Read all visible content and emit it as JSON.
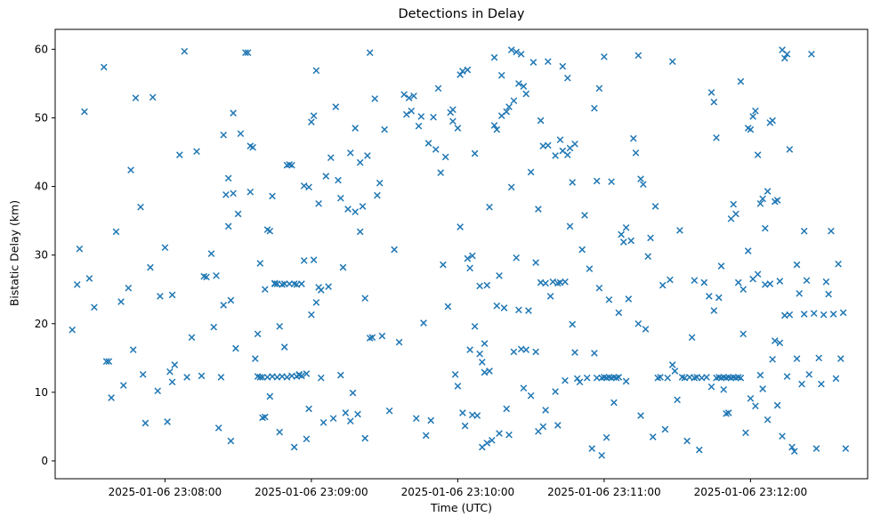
{
  "figure": {
    "title": "Detections in Delay",
    "xlabel": "Time (UTC)",
    "ylabel": "Bistatic Delay (km)"
  },
  "chart_data": {
    "type": "scatter",
    "title": "Detections in Delay",
    "xlabel": "Time (UTC)",
    "ylabel": "Bistatic Delay (km)",
    "marker": "x",
    "marker_color": "#1f77b4",
    "grid": false,
    "legend": "none",
    "x_unit": "seconds after 2025-01-06 23:08:00 UTC",
    "xlim": [
      -45,
      288
    ],
    "ylim": [
      -2.6,
      62.9
    ],
    "y_ticks": [
      0,
      10,
      20,
      30,
      40,
      50,
      60
    ],
    "x_ticks": [
      {
        "t": 0,
        "label": "2025-01-06 23:08:00"
      },
      {
        "t": 60,
        "label": "2025-01-06 23:09:00"
      },
      {
        "t": 120,
        "label": "2025-01-06 23:10:00"
      },
      {
        "t": 180,
        "label": "2025-01-06 23:11:00"
      },
      {
        "t": 240,
        "label": "2025-01-06 23:12:00"
      }
    ],
    "points": [
      [
        -38,
        19.1
      ],
      [
        -36,
        25.7
      ],
      [
        -35,
        30.9
      ],
      [
        -33,
        50.9
      ],
      [
        -31,
        26.6
      ],
      [
        -29,
        22.4
      ],
      [
        -25,
        57.4
      ],
      [
        -24,
        14.5
      ],
      [
        -23,
        14.5
      ],
      [
        -22,
        9.2
      ],
      [
        -20,
        33.4
      ],
      [
        -18,
        23.2
      ],
      [
        -17,
        11.0
      ],
      [
        -15,
        25.2
      ],
      [
        -14,
        42.4
      ],
      [
        -13,
        16.2
      ],
      [
        -12,
        52.9
      ],
      [
        -10,
        37.0
      ],
      [
        -9,
        12.6
      ],
      [
        -8,
        5.5
      ],
      [
        -6,
        28.2
      ],
      [
        -5,
        53.0
      ],
      [
        -3,
        10.2
      ],
      [
        -2,
        24.0
      ],
      [
        0,
        31.1
      ],
      [
        1,
        5.7
      ],
      [
        2,
        13.0
      ],
      [
        3,
        24.2
      ],
      [
        3,
        11.5
      ],
      [
        4,
        14.0
      ],
      [
        6,
        44.6
      ],
      [
        8,
        59.7
      ],
      [
        9,
        12.2
      ],
      [
        11,
        18.0
      ],
      [
        13,
        45.1
      ],
      [
        15,
        12.4
      ],
      [
        16,
        26.9
      ],
      [
        17,
        26.8
      ],
      [
        19,
        30.2
      ],
      [
        20,
        19.5
      ],
      [
        21,
        27.0
      ],
      [
        22,
        4.8
      ],
      [
        23,
        12.2
      ],
      [
        24,
        22.7
      ],
      [
        24,
        47.5
      ],
      [
        25,
        38.8
      ],
      [
        26,
        41.2
      ],
      [
        26,
        34.2
      ],
      [
        27,
        2.9
      ],
      [
        27,
        23.4
      ],
      [
        28,
        39.0
      ],
      [
        28,
        50.7
      ],
      [
        29,
        16.4
      ],
      [
        30,
        36.0
      ],
      [
        31,
        47.7
      ],
      [
        33,
        59.5
      ],
      [
        34,
        59.5
      ],
      [
        35,
        39.2
      ],
      [
        35,
        45.9
      ],
      [
        36,
        45.7
      ],
      [
        37,
        14.9
      ],
      [
        38,
        12.3
      ],
      [
        38,
        18.5
      ],
      [
        39,
        28.8
      ],
      [
        39,
        12.2
      ],
      [
        40,
        12.2
      ],
      [
        40,
        6.3
      ],
      [
        41,
        6.4
      ],
      [
        41,
        25.0
      ],
      [
        42,
        12.2
      ],
      [
        42,
        33.7
      ],
      [
        43,
        33.5
      ],
      [
        43,
        9.4
      ],
      [
        44,
        38.6
      ],
      [
        44,
        12.3
      ],
      [
        45,
        25.9
      ],
      [
        45,
        25.8
      ],
      [
        46,
        12.2
      ],
      [
        46,
        25.8
      ],
      [
        47,
        4.2
      ],
      [
        47,
        19.6
      ],
      [
        48,
        25.7
      ],
      [
        48,
        12.3
      ],
      [
        49,
        16.6
      ],
      [
        49,
        25.8
      ],
      [
        50,
        12.2
      ],
      [
        50,
        43.1
      ],
      [
        51,
        43.2
      ],
      [
        51,
        25.8
      ],
      [
        52,
        12.4
      ],
      [
        52,
        43.1
      ],
      [
        53,
        2.0
      ],
      [
        53,
        25.8
      ],
      [
        54,
        12.3
      ],
      [
        54,
        25.7
      ],
      [
        55,
        12.5
      ],
      [
        55,
        12.6
      ],
      [
        56,
        25.8
      ],
      [
        56,
        12.4
      ],
      [
        57,
        40.1
      ],
      [
        57,
        29.2
      ],
      [
        58,
        3.2
      ],
      [
        58,
        12.7
      ],
      [
        59,
        39.9
      ],
      [
        59,
        7.6
      ],
      [
        60,
        49.4
      ],
      [
        60,
        21.3
      ],
      [
        61,
        50.3
      ],
      [
        61,
        29.3
      ],
      [
        62,
        23.1
      ],
      [
        62,
        56.9
      ],
      [
        63,
        25.3
      ],
      [
        63,
        37.5
      ],
      [
        64,
        12.1
      ],
      [
        64,
        24.9
      ],
      [
        65,
        5.6
      ],
      [
        66,
        41.5
      ],
      [
        67,
        25.4
      ],
      [
        68,
        44.2
      ],
      [
        69,
        6.2
      ],
      [
        70,
        51.6
      ],
      [
        71,
        40.9
      ],
      [
        72,
        38.3
      ],
      [
        72,
        12.5
      ],
      [
        73,
        28.2
      ],
      [
        74,
        7.0
      ],
      [
        75,
        36.7
      ],
      [
        76,
        44.9
      ],
      [
        76,
        5.8
      ],
      [
        77,
        9.9
      ],
      [
        78,
        36.3
      ],
      [
        78,
        48.5
      ],
      [
        79,
        6.8
      ],
      [
        80,
        43.5
      ],
      [
        80,
        33.4
      ],
      [
        81,
        37.1
      ],
      [
        82,
        3.3
      ],
      [
        82,
        23.7
      ],
      [
        83,
        44.5
      ],
      [
        84,
        59.5
      ],
      [
        84,
        17.9
      ],
      [
        85,
        18.0
      ],
      [
        86,
        52.8
      ],
      [
        87,
        38.7
      ],
      [
        88,
        40.5
      ],
      [
        89,
        18.2
      ],
      [
        90,
        48.3
      ],
      [
        92,
        7.3
      ],
      [
        94,
        30.8
      ],
      [
        96,
        17.3
      ],
      [
        98,
        53.4
      ],
      [
        99,
        50.5
      ],
      [
        100,
        52.9
      ],
      [
        101,
        51.0
      ],
      [
        102,
        53.2
      ],
      [
        103,
        6.2
      ],
      [
        104,
        48.8
      ],
      [
        105,
        50.2
      ],
      [
        106,
        20.1
      ],
      [
        107,
        3.7
      ],
      [
        108,
        46.3
      ],
      [
        109,
        5.9
      ],
      [
        110,
        50.1
      ],
      [
        111,
        45.4
      ],
      [
        112,
        54.3
      ],
      [
        113,
        42.0
      ],
      [
        114,
        28.6
      ],
      [
        115,
        44.3
      ],
      [
        116,
        22.5
      ],
      [
        117,
        50.8
      ],
      [
        118,
        49.5
      ],
      [
        118,
        51.2
      ],
      [
        119,
        12.6
      ],
      [
        120,
        48.5
      ],
      [
        120,
        10.9
      ],
      [
        121,
        56.3
      ],
      [
        121,
        34.1
      ],
      [
        122,
        56.8
      ],
      [
        122,
        7.0
      ],
      [
        123,
        5.1
      ],
      [
        124,
        57.0
      ],
      [
        124,
        29.5
      ],
      [
        125,
        28.1
      ],
      [
        125,
        16.2
      ],
      [
        126,
        29.9
      ],
      [
        126,
        6.7
      ],
      [
        127,
        44.8
      ],
      [
        127,
        19.6
      ],
      [
        128,
        6.6
      ],
      [
        129,
        15.6
      ],
      [
        129,
        25.5
      ],
      [
        130,
        14.4
      ],
      [
        130,
        2.0
      ],
      [
        131,
        12.9
      ],
      [
        131,
        17.1
      ],
      [
        132,
        25.6
      ],
      [
        132,
        2.6
      ],
      [
        133,
        37.0
      ],
      [
        133,
        13.1
      ],
      [
        134,
        3.0
      ],
      [
        135,
        58.8
      ],
      [
        135,
        48.9
      ],
      [
        136,
        48.3
      ],
      [
        136,
        22.6
      ],
      [
        137,
        4.0
      ],
      [
        137,
        27.0
      ],
      [
        138,
        56.2
      ],
      [
        138,
        50.3
      ],
      [
        139,
        22.3
      ],
      [
        140,
        50.9
      ],
      [
        140,
        7.6
      ],
      [
        141,
        51.6
      ],
      [
        141,
        3.8
      ],
      [
        142,
        59.9
      ],
      [
        142,
        39.9
      ],
      [
        143,
        52.5
      ],
      [
        143,
        15.9
      ],
      [
        144,
        59.6
      ],
      [
        144,
        29.6
      ],
      [
        145,
        55.0
      ],
      [
        145,
        22.0
      ],
      [
        146,
        59.3
      ],
      [
        146,
        16.3
      ],
      [
        147,
        54.6
      ],
      [
        147,
        10.6
      ],
      [
        148,
        53.5
      ],
      [
        148,
        16.2
      ],
      [
        149,
        21.9
      ],
      [
        150,
        42.1
      ],
      [
        150,
        9.5
      ],
      [
        151,
        58.1
      ],
      [
        152,
        28.9
      ],
      [
        152,
        15.9
      ],
      [
        153,
        36.7
      ],
      [
        153,
        4.3
      ],
      [
        154,
        49.6
      ],
      [
        154,
        26.0
      ],
      [
        155,
        45.9
      ],
      [
        155,
        5.0
      ],
      [
        156,
        25.9
      ],
      [
        156,
        7.4
      ],
      [
        157,
        58.2
      ],
      [
        157,
        46.0
      ],
      [
        158,
        24.0
      ],
      [
        159,
        26.1
      ],
      [
        160,
        10.1
      ],
      [
        160,
        44.5
      ],
      [
        161,
        25.9
      ],
      [
        161,
        5.2
      ],
      [
        162,
        46.8
      ],
      [
        162,
        26.0
      ],
      [
        163,
        57.5
      ],
      [
        163,
        45.2
      ],
      [
        164,
        26.1
      ],
      [
        164,
        11.7
      ],
      [
        165,
        55.8
      ],
      [
        165,
        44.6
      ],
      [
        166,
        45.6
      ],
      [
        166,
        34.2
      ],
      [
        167,
        40.6
      ],
      [
        167,
        19.9
      ],
      [
        168,
        46.2
      ],
      [
        168,
        15.8
      ],
      [
        169,
        12.0
      ],
      [
        170,
        11.5
      ],
      [
        171,
        30.8
      ],
      [
        172,
        35.8
      ],
      [
        173,
        12.1
      ],
      [
        174,
        28.0
      ],
      [
        175,
        1.8
      ],
      [
        176,
        51.4
      ],
      [
        176,
        15.7
      ],
      [
        177,
        40.8
      ],
      [
        177,
        12.1
      ],
      [
        178,
        54.3
      ],
      [
        178,
        25.2
      ],
      [
        179,
        12.1
      ],
      [
        179,
        0.8
      ],
      [
        180,
        58.9
      ],
      [
        180,
        12.2
      ],
      [
        181,
        12.1
      ],
      [
        181,
        3.4
      ],
      [
        182,
        12.2
      ],
      [
        182,
        23.5
      ],
      [
        183,
        12.1
      ],
      [
        183,
        40.7
      ],
      [
        184,
        12.2
      ],
      [
        184,
        8.5
      ],
      [
        185,
        12.1
      ],
      [
        186,
        21.6
      ],
      [
        186,
        12.2
      ],
      [
        187,
        33.0
      ],
      [
        188,
        31.9
      ],
      [
        189,
        34.0
      ],
      [
        189,
        11.6
      ],
      [
        190,
        23.6
      ],
      [
        191,
        32.1
      ],
      [
        192,
        47.0
      ],
      [
        193,
        44.9
      ],
      [
        194,
        59.1
      ],
      [
        194,
        20.0
      ],
      [
        195,
        41.1
      ],
      [
        195,
        6.6
      ],
      [
        196,
        40.3
      ],
      [
        197,
        19.2
      ],
      [
        198,
        29.8
      ],
      [
        199,
        32.5
      ],
      [
        200,
        3.5
      ],
      [
        201,
        37.1
      ],
      [
        202,
        12.1
      ],
      [
        203,
        12.2
      ],
      [
        204,
        25.6
      ],
      [
        205,
        4.6
      ],
      [
        206,
        12.1
      ],
      [
        207,
        26.4
      ],
      [
        208,
        58.2
      ],
      [
        208,
        14.0
      ],
      [
        209,
        13.1
      ],
      [
        210,
        8.9
      ],
      [
        211,
        33.6
      ],
      [
        212,
        12.2
      ],
      [
        213,
        12.1
      ],
      [
        214,
        2.9
      ],
      [
        215,
        12.2
      ],
      [
        216,
        18.0
      ],
      [
        217,
        12.1
      ],
      [
        217,
        26.3
      ],
      [
        218,
        12.2
      ],
      [
        219,
        1.6
      ],
      [
        220,
        12.1
      ],
      [
        221,
        26.0
      ],
      [
        222,
        12.2
      ],
      [
        223,
        24.0
      ],
      [
        224,
        53.7
      ],
      [
        224,
        10.8
      ],
      [
        225,
        52.3
      ],
      [
        225,
        21.9
      ],
      [
        226,
        47.1
      ],
      [
        226,
        12.1
      ],
      [
        227,
        23.8
      ],
      [
        227,
        12.2
      ],
      [
        228,
        28.4
      ],
      [
        228,
        12.1
      ],
      [
        229,
        10.4
      ],
      [
        229,
        12.2
      ],
      [
        230,
        6.9
      ],
      [
        230,
        12.1
      ],
      [
        231,
        7.0
      ],
      [
        231,
        12.2
      ],
      [
        232,
        35.3
      ],
      [
        232,
        12.1
      ],
      [
        233,
        37.4
      ],
      [
        233,
        12.2
      ],
      [
        234,
        36.0
      ],
      [
        234,
        12.1
      ],
      [
        235,
        26.0
      ],
      [
        235,
        12.2
      ],
      [
        236,
        55.3
      ],
      [
        236,
        12.1
      ],
      [
        237,
        25.0
      ],
      [
        237,
        18.5
      ],
      [
        238,
        4.1
      ],
      [
        239,
        48.5
      ],
      [
        239,
        30.6
      ],
      [
        240,
        48.3
      ],
      [
        240,
        9.1
      ],
      [
        241,
        50.2
      ],
      [
        241,
        26.5
      ],
      [
        242,
        51.0
      ],
      [
        242,
        8.0
      ],
      [
        243,
        44.6
      ],
      [
        243,
        27.2
      ],
      [
        244,
        37.5
      ],
      [
        244,
        12.5
      ],
      [
        245,
        38.2
      ],
      [
        245,
        10.5
      ],
      [
        246,
        33.9
      ],
      [
        246,
        25.7
      ],
      [
        247,
        39.3
      ],
      [
        247,
        6.0
      ],
      [
        248,
        49.3
      ],
      [
        248,
        25.8
      ],
      [
        249,
        49.6
      ],
      [
        249,
        14.8
      ],
      [
        250,
        37.8
      ],
      [
        250,
        17.5
      ],
      [
        251,
        38.0
      ],
      [
        251,
        8.1
      ],
      [
        252,
        26.2
      ],
      [
        252,
        17.2
      ],
      [
        253,
        59.9
      ],
      [
        253,
        3.6
      ],
      [
        254,
        58.7
      ],
      [
        254,
        21.2
      ],
      [
        255,
        59.3
      ],
      [
        255,
        12.3
      ],
      [
        256,
        45.4
      ],
      [
        256,
        21.3
      ],
      [
        257,
        2.0
      ],
      [
        258,
        1.4
      ],
      [
        259,
        28.6
      ],
      [
        259,
        14.9
      ],
      [
        260,
        24.4
      ],
      [
        261,
        11.2
      ],
      [
        262,
        33.5
      ],
      [
        262,
        21.4
      ],
      [
        263,
        26.3
      ],
      [
        264,
        12.6
      ],
      [
        265,
        59.3
      ],
      [
        266,
        21.5
      ],
      [
        267,
        1.8
      ],
      [
        268,
        15.0
      ],
      [
        269,
        11.2
      ],
      [
        270,
        21.3
      ],
      [
        271,
        26.1
      ],
      [
        272,
        24.3
      ],
      [
        273,
        33.5
      ],
      [
        274,
        21.4
      ],
      [
        275,
        12.0
      ],
      [
        276,
        28.7
      ],
      [
        277,
        14.9
      ],
      [
        278,
        21.6
      ],
      [
        279,
        1.8
      ]
    ]
  }
}
